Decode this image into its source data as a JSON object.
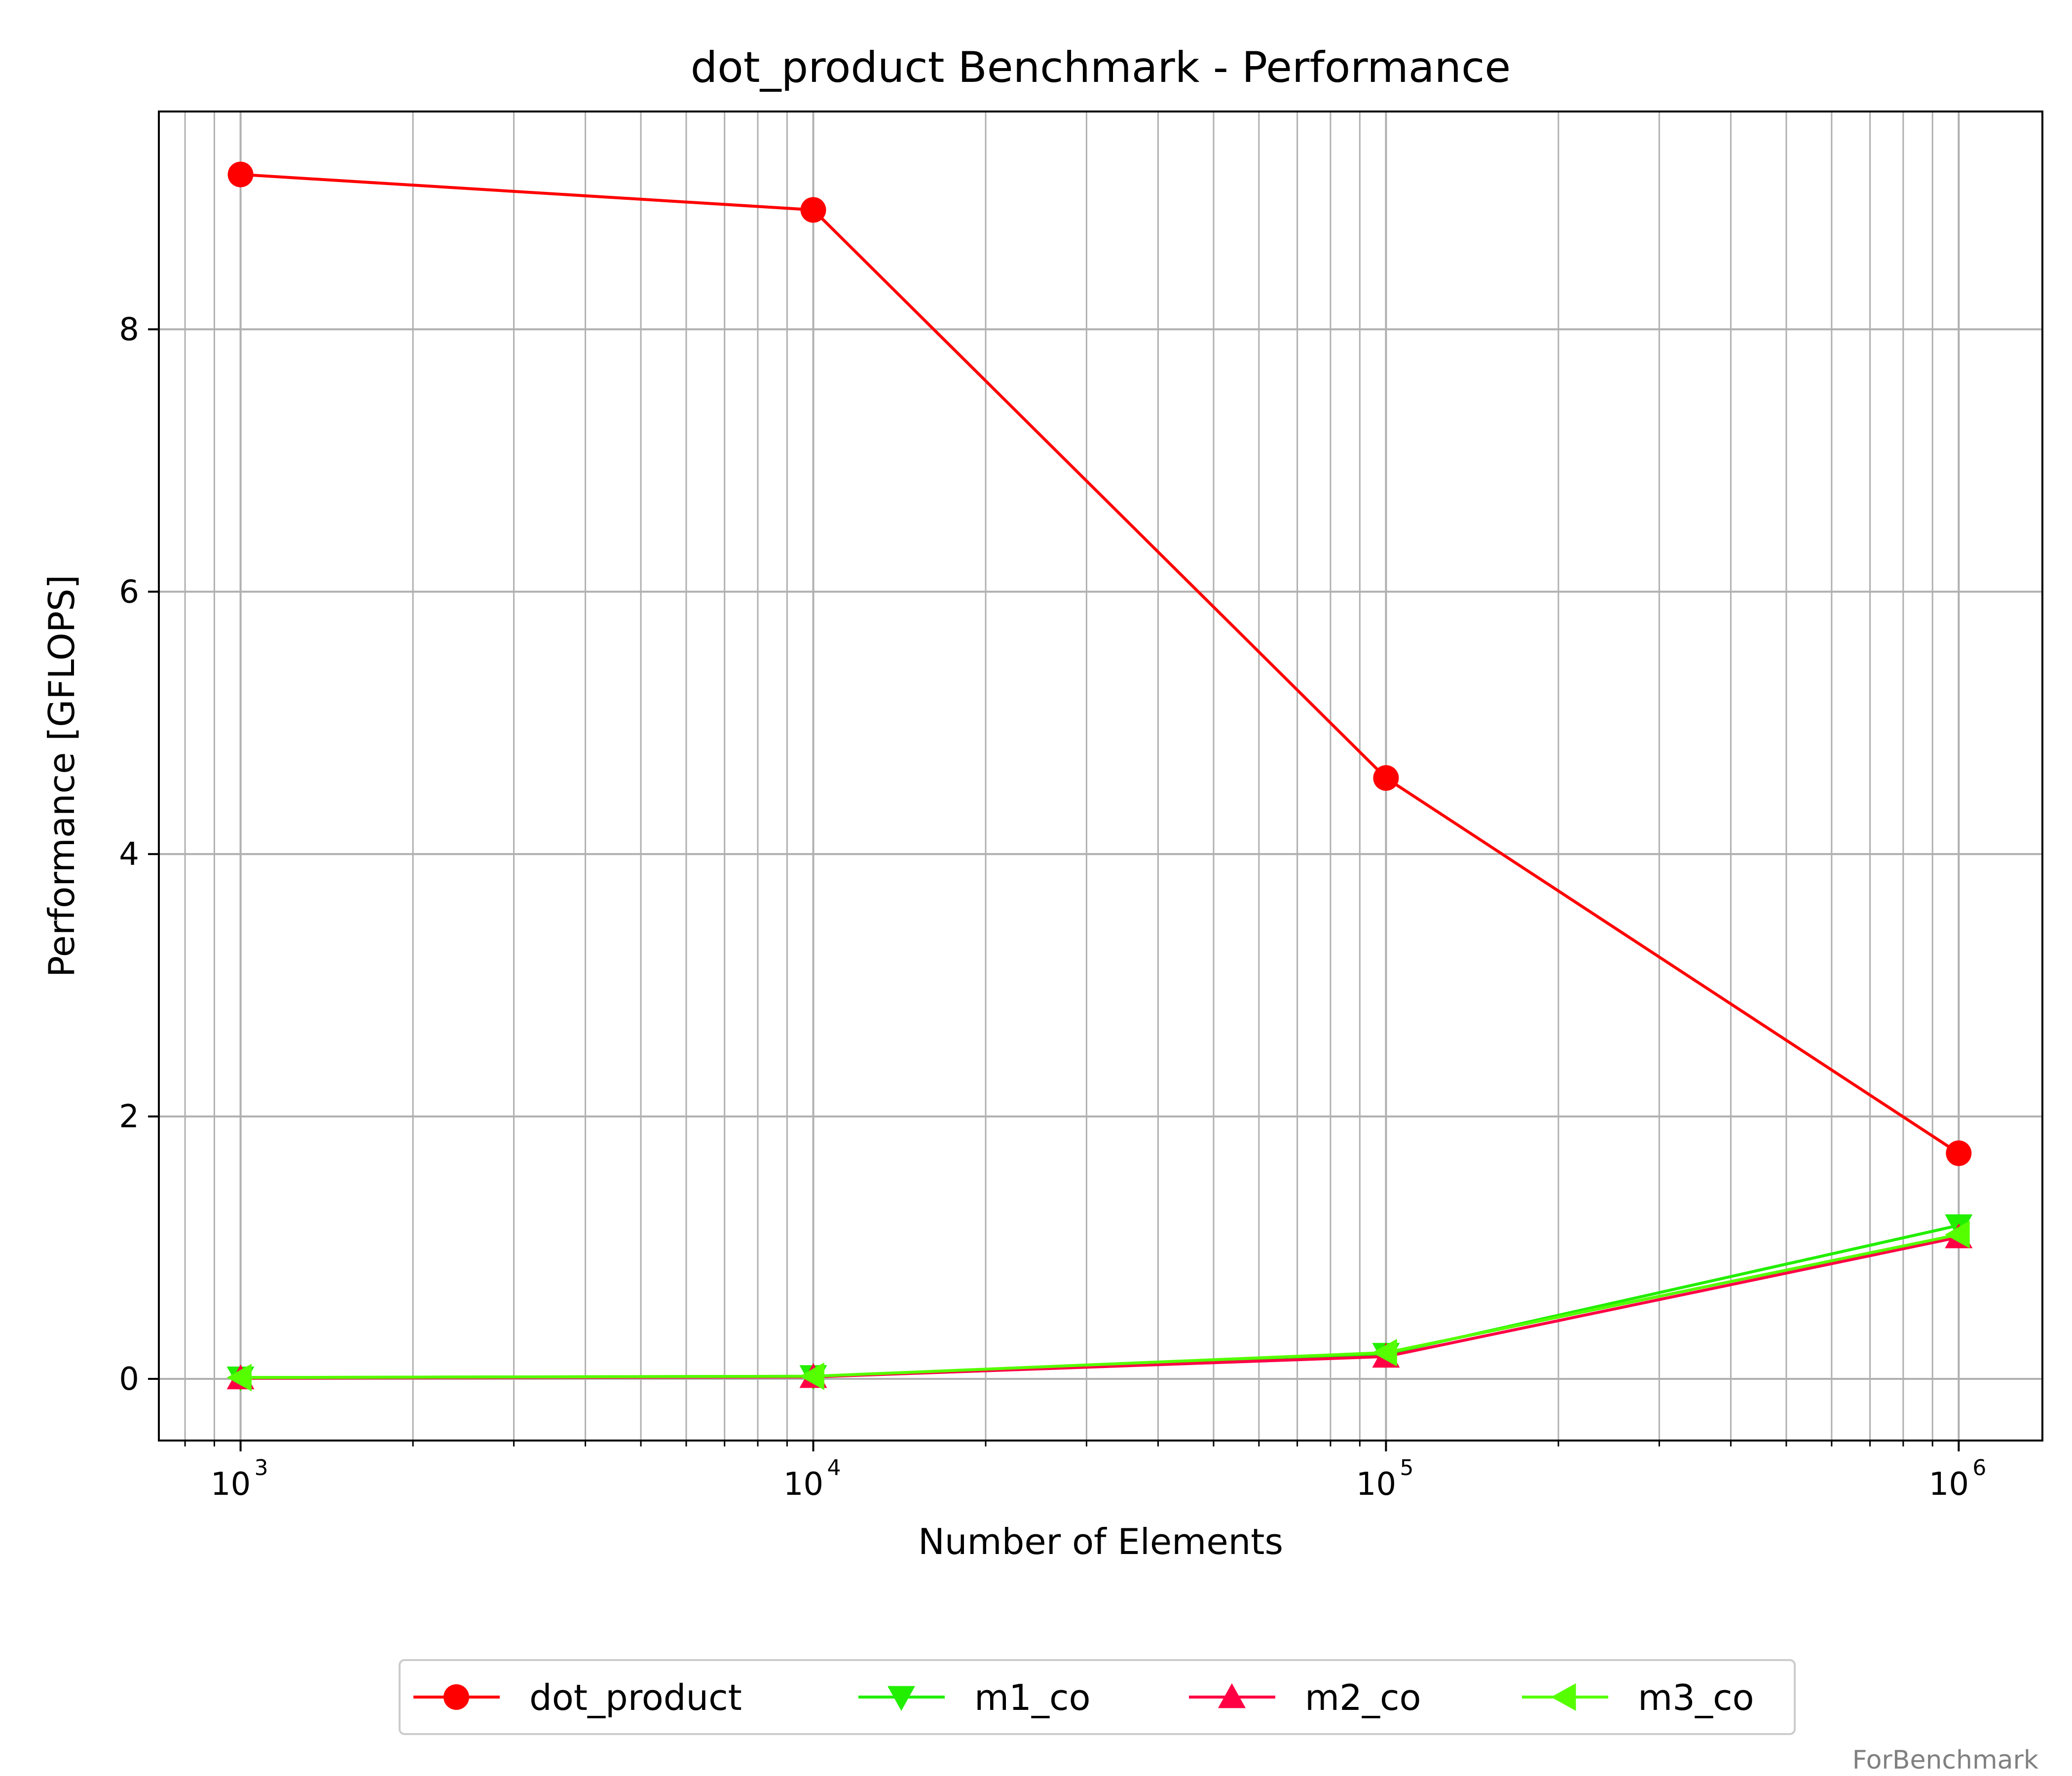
{
  "chart_data": {
    "type": "line",
    "title": "dot_product Benchmark - Performance",
    "xlabel": "Number of Elements",
    "ylabel": "Performance [GFLOPS]",
    "xscale": "log",
    "xlim": [
      720,
      1400000
    ],
    "ylim": [
      -0.47,
      9.66
    ],
    "grid": "on (major and minor)",
    "legend_position": "bottom-center, below axes",
    "x": [
      1000,
      10000,
      100000,
      1000000
    ],
    "x_ticks": [
      {
        "value": 1000,
        "base": "10",
        "exp": "3"
      },
      {
        "value": 10000,
        "base": "10",
        "exp": "4"
      },
      {
        "value": 100000,
        "base": "10",
        "exp": "5"
      },
      {
        "value": 1000000,
        "base": "10",
        "exp": "6"
      }
    ],
    "y_ticks": [
      {
        "value": 0,
        "label": "0"
      },
      {
        "value": 2,
        "label": "2"
      },
      {
        "value": 4,
        "label": "4"
      },
      {
        "value": 6,
        "label": "6"
      },
      {
        "value": 8,
        "label": "8"
      }
    ],
    "series": [
      {
        "name": "dot_product",
        "color": "#ff0000",
        "marker": "circle",
        "values": [
          9.18,
          8.91,
          4.58,
          1.72
        ]
      },
      {
        "name": "m1_co",
        "color": "#22ee00",
        "marker": "triangle-down",
        "values": [
          0.01,
          0.02,
          0.19,
          1.17
        ]
      },
      {
        "name": "m2_co",
        "color": "#ff0044",
        "marker": "triangle-up",
        "values": [
          0.005,
          0.015,
          0.17,
          1.08
        ]
      },
      {
        "name": "m3_co",
        "color": "#55ff00",
        "marker": "triangle-left",
        "values": [
          0.01,
          0.02,
          0.2,
          1.1
        ]
      }
    ]
  },
  "watermark": "ForBenchmark"
}
